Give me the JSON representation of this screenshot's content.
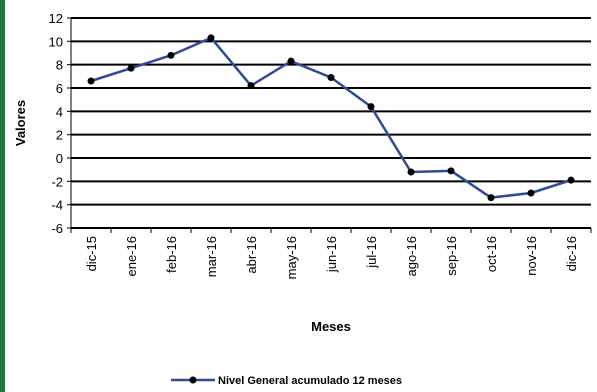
{
  "chart_data": {
    "type": "line",
    "title": "",
    "xlabel": "Meses",
    "ylabel": "Valores",
    "ylim": [
      -6,
      12
    ],
    "yticks": [
      12,
      10,
      8,
      6,
      4,
      2,
      0,
      -2,
      -4,
      -6
    ],
    "grid": true,
    "legend_position": "bottom",
    "categories": [
      "dic-15",
      "ene-16",
      "feb-16",
      "mar-16",
      "abr-16",
      "may-16",
      "jun-16",
      "jul-16",
      "ago-16",
      "sep-16",
      "oct-16",
      "nov-16",
      "dic-16"
    ],
    "series": [
      {
        "name": "Nivel General acumulado 12 meses",
        "color": "#2e4a99",
        "values": [
          6.6,
          7.7,
          8.8,
          10.3,
          6.2,
          8.3,
          6.9,
          4.4,
          -1.2,
          -1.1,
          -3.4,
          -3.0,
          -1.9
        ]
      }
    ]
  }
}
